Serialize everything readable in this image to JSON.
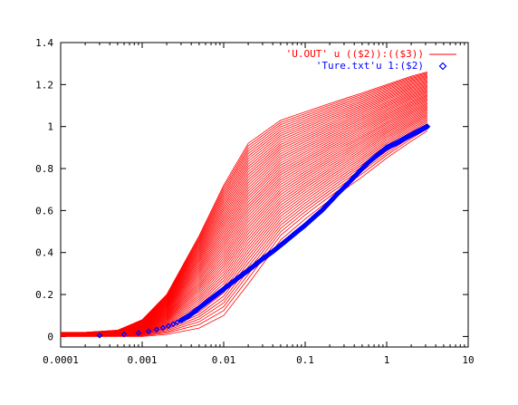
{
  "chart_data": {
    "type": "line",
    "title": "",
    "xlabel": "",
    "ylabel": "",
    "x_scale": "log",
    "xlim": [
      0.0001,
      10
    ],
    "ylim": [
      -0.05,
      1.4
    ],
    "x_tick_labels": [
      "0.0001",
      "0.001",
      "0.01",
      "0.1",
      "1",
      "10"
    ],
    "y_tick_labels": [
      "0",
      "0.2",
      "0.4",
      "0.6",
      "0.8",
      "1",
      "1.2",
      "1.4"
    ],
    "grid": false,
    "legend_position": "top-right",
    "series_u_out": {
      "name": "'U.OUT'   u  (($2)):(($3))",
      "color": "#ff0000",
      "style": "lines",
      "curve_count": 48,
      "x": [
        0.0001,
        0.0002,
        0.0005,
        0.001,
        0.002,
        0.005,
        0.01,
        0.02,
        0.05,
        0.1,
        0.2,
        0.5,
        1,
        2,
        3.16
      ],
      "y_upper": [
        0.02,
        0.02,
        0.03,
        0.08,
        0.2,
        0.48,
        0.72,
        0.92,
        1.03,
        1.07,
        1.11,
        1.16,
        1.2,
        1.24,
        1.26
      ],
      "y_lower": [
        0.0,
        0.0,
        0.0,
        0.0,
        0.01,
        0.04,
        0.1,
        0.25,
        0.46,
        0.56,
        0.65,
        0.76,
        0.85,
        0.93,
        0.98
      ]
    },
    "series_true": {
      "name": "'Ture.txt'u 1:($2)",
      "color": "#0000ff",
      "style": "points",
      "marker": "diamond",
      "x": [
        0.0003,
        0.0006,
        0.0009,
        0.0012,
        0.0015,
        0.0018,
        0.0021,
        0.0024,
        0.0027,
        0.003,
        0.0033,
        0.0036,
        0.0039,
        0.0042,
        0.0045,
        0.0048,
        0.0051,
        0.0055,
        0.006,
        0.0066,
        0.0073,
        0.008,
        0.009,
        0.01,
        0.012,
        0.014,
        0.017,
        0.02,
        0.025,
        0.03,
        0.04,
        0.05,
        0.06,
        0.08,
        0.1,
        0.13,
        0.16,
        0.2,
        0.25,
        0.3,
        0.4,
        0.5,
        0.6,
        0.8,
        1.0,
        1.3,
        1.6,
        2.0,
        2.5,
        3.16
      ],
      "y": [
        0.005,
        0.01,
        0.017,
        0.025,
        0.033,
        0.041,
        0.05,
        0.059,
        0.068,
        0.077,
        0.086,
        0.095,
        0.104,
        0.113,
        0.122,
        0.13,
        0.139,
        0.149,
        0.16,
        0.172,
        0.185,
        0.197,
        0.212,
        0.226,
        0.25,
        0.27,
        0.295,
        0.315,
        0.345,
        0.37,
        0.405,
        0.435,
        0.46,
        0.5,
        0.53,
        0.57,
        0.6,
        0.64,
        0.68,
        0.71,
        0.76,
        0.8,
        0.83,
        0.87,
        0.9,
        0.92,
        0.94,
        0.96,
        0.98,
        1.0
      ]
    }
  }
}
